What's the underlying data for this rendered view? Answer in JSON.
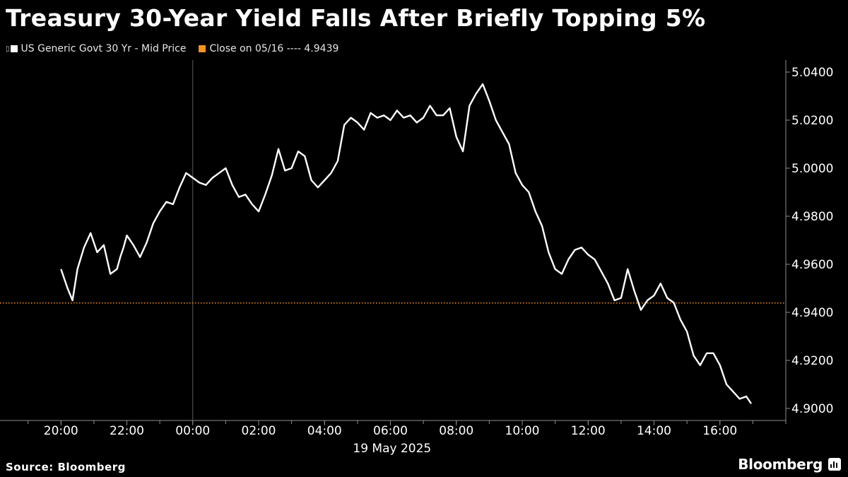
{
  "chart_data": {
    "type": "line",
    "title": "Treasury 30-Year Yield Falls After Briefly Topping 5%",
    "xlabel": "19 May 2025",
    "ylabel": "",
    "ylim": [
      4.895,
      5.045
    ],
    "y_ticks": [
      "5.0400",
      "5.0200",
      "5.0000",
      "4.9800",
      "4.9600",
      "4.9400",
      "4.9200",
      "4.9000"
    ],
    "y_tick_values": [
      5.04,
      5.02,
      5.0,
      4.98,
      4.96,
      4.94,
      4.92,
      4.9
    ],
    "x_ticks": [
      "20:00",
      "22:00",
      "00:00",
      "02:00",
      "04:00",
      "06:00",
      "08:00",
      "10:00",
      "12:00",
      "14:00",
      "16:00"
    ],
    "x_tick_hours": [
      20,
      22,
      24,
      26,
      28,
      30,
      32,
      34,
      36,
      38,
      40
    ],
    "x_range_hours": [
      18.15,
      42.0
    ],
    "day_boundary_hour": 24,
    "grid": false,
    "legend_position": "top-left",
    "series": [
      {
        "name": "US Generic Govt 30 Yr - Mid Price",
        "color": "#ffffff",
        "x_hours": [
          20.0,
          20.2,
          20.35,
          20.5,
          20.7,
          20.9,
          21.1,
          21.3,
          21.5,
          21.7,
          21.8,
          21.9,
          22.0,
          22.2,
          22.4,
          22.6,
          22.8,
          23.0,
          23.2,
          23.4,
          23.6,
          23.8,
          24.0,
          24.2,
          24.4,
          24.6,
          24.8,
          25.0,
          25.2,
          25.4,
          25.6,
          25.8,
          26.0,
          26.2,
          26.4,
          26.6,
          26.8,
          27.0,
          27.2,
          27.4,
          27.6,
          27.8,
          28.0,
          28.2,
          28.4,
          28.6,
          28.8,
          29.0,
          29.2,
          29.4,
          29.6,
          29.8,
          30.0,
          30.2,
          30.4,
          30.6,
          30.8,
          31.0,
          31.2,
          31.4,
          31.6,
          31.8,
          32.0,
          32.2,
          32.4,
          32.6,
          32.8,
          33.0,
          33.2,
          33.4,
          33.6,
          33.8,
          34.0,
          34.2,
          34.4,
          34.6,
          34.8,
          35.0,
          35.2,
          35.4,
          35.6,
          35.8,
          36.0,
          36.2,
          36.4,
          36.6,
          36.8,
          37.0,
          37.2,
          37.4,
          37.6,
          37.8,
          38.0,
          38.2,
          38.4,
          38.6,
          38.8,
          39.0,
          39.2,
          39.4,
          39.6,
          39.8,
          40.0,
          40.2,
          40.4,
          40.6,
          40.8,
          40.95
        ],
        "values": [
          4.958,
          4.95,
          4.945,
          4.958,
          4.967,
          4.973,
          4.965,
          4.968,
          4.956,
          4.958,
          4.963,
          4.967,
          4.972,
          4.968,
          4.963,
          4.969,
          4.977,
          4.982,
          4.986,
          4.985,
          4.992,
          4.998,
          4.996,
          4.994,
          4.993,
          4.996,
          4.998,
          5.0,
          4.993,
          4.988,
          4.989,
          4.985,
          4.982,
          4.989,
          4.997,
          5.008,
          4.999,
          5.0,
          5.007,
          5.005,
          4.995,
          4.992,
          4.995,
          4.998,
          5.003,
          5.018,
          5.021,
          5.019,
          5.016,
          5.023,
          5.021,
          5.022,
          5.02,
          5.024,
          5.021,
          5.022,
          5.019,
          5.021,
          5.026,
          5.022,
          5.022,
          5.025,
          5.013,
          5.007,
          5.026,
          5.031,
          5.035,
          5.028,
          5.02,
          5.015,
          5.01,
          4.998,
          4.993,
          4.99,
          4.982,
          4.976,
          4.965,
          4.958,
          4.956,
          4.962,
          4.966,
          4.967,
          4.964,
          4.962,
          4.957,
          4.952,
          4.945,
          4.946,
          4.958,
          4.949,
          4.941,
          4.945,
          4.947,
          4.952,
          4.946,
          4.944,
          4.937,
          4.932,
          4.922,
          4.918,
          4.923,
          4.923,
          4.918,
          4.91,
          4.907,
          4.904,
          4.905,
          4.902
        ]
      }
    ],
    "reference_line": {
      "label": "Close on 05/16 ---- 4.9439",
      "value": 4.9439,
      "color": "#f7931e"
    }
  },
  "legend": {
    "series_label": "US Generic Govt 30 Yr - Mid Price",
    "reference_label": "Close on 05/16 ---- 4.9439"
  },
  "footer": {
    "source": "Source: Bloomberg",
    "brand": "Bloomberg"
  }
}
